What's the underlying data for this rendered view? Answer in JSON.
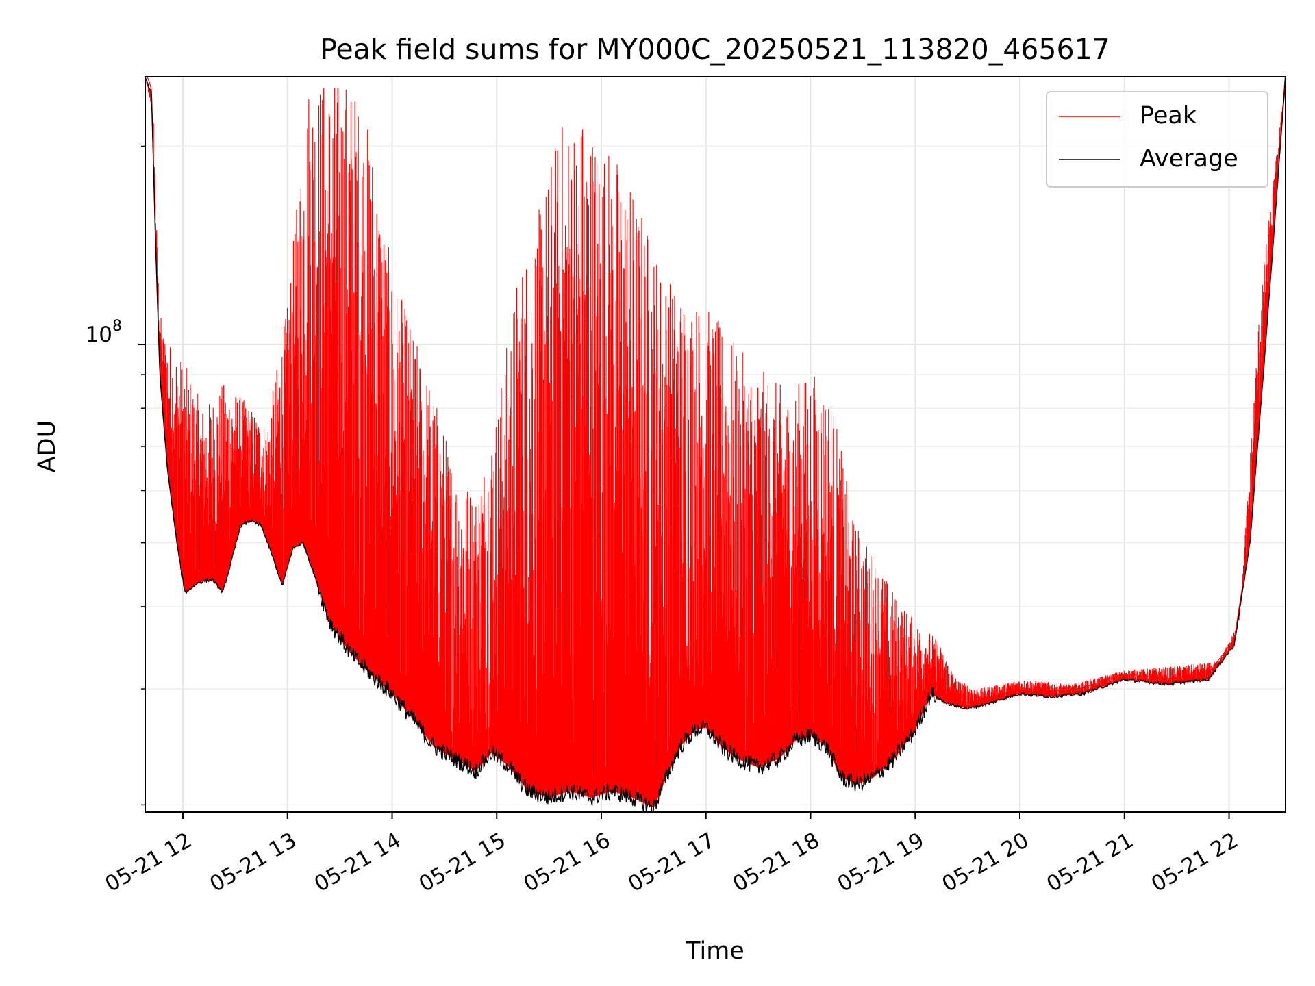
{
  "chart_data": {
    "type": "line",
    "title": "Peak field sums for MY000C_20250521_113820_465617",
    "xlabel": "Time",
    "ylabel": "ADU",
    "yscale": "log",
    "grid": true,
    "legend_position": "top-right",
    "x_tick_labels": [
      "05-21 12",
      "05-21 13",
      "05-21 14",
      "05-21 15",
      "05-21 16",
      "05-21 17",
      "05-21 18",
      "05-21 19",
      "05-21 20",
      "05-21 21",
      "05-21 22"
    ],
    "y_tick_major": {
      "value": 100000000,
      "base": "10",
      "exponent": "8"
    },
    "y_minor_ticks": [
      20000000,
      30000000,
      40000000,
      50000000,
      60000000,
      70000000,
      80000000,
      90000000,
      200000000
    ],
    "xlim_hours": [
      11.64,
      22.54
    ],
    "ylim": [
      19500000,
      255000000
    ],
    "series": [
      {
        "name": "Peak",
        "color": "#ff0000",
        "points": [
          [
            11.64,
            255000000.0
          ],
          [
            11.72,
            220000000.0
          ],
          [
            11.76,
            130000000.0
          ],
          [
            11.8,
            105000000.0
          ],
          [
            11.85,
            102000000.0
          ],
          [
            12.0,
            95000000.0
          ],
          [
            12.2,
            80000000.0
          ],
          [
            12.4,
            88000000.0
          ],
          [
            12.6,
            82000000.0
          ],
          [
            12.8,
            75000000.0
          ],
          [
            13.0,
            115000000.0
          ],
          [
            13.2,
            255000000.0
          ],
          [
            13.4,
            255000000.0
          ],
          [
            13.6,
            255000000.0
          ],
          [
            13.8,
            210000000.0
          ],
          [
            14.0,
            130000000.0
          ],
          [
            14.2,
            105000000.0
          ],
          [
            14.4,
            85000000.0
          ],
          [
            14.6,
            65000000.0
          ],
          [
            14.8,
            60000000.0
          ],
          [
            15.0,
            80000000.0
          ],
          [
            15.2,
            130000000.0
          ],
          [
            15.4,
            160000000.0
          ],
          [
            15.6,
            220000000.0
          ],
          [
            15.8,
            230000000.0
          ],
          [
            16.0,
            210000000.0
          ],
          [
            16.2,
            190000000.0
          ],
          [
            16.4,
            160000000.0
          ],
          [
            16.6,
            130000000.0
          ],
          [
            16.8,
            120000000.0
          ],
          [
            17.0,
            115000000.0
          ],
          [
            17.2,
            105000000.0
          ],
          [
            17.4,
            95000000.0
          ],
          [
            17.6,
            90000000.0
          ],
          [
            17.8,
            85000000.0
          ],
          [
            18.0,
            92000000.0
          ],
          [
            18.2,
            85000000.0
          ],
          [
            18.4,
            55000000.0
          ],
          [
            18.6,
            48000000.0
          ],
          [
            18.8,
            42000000.0
          ],
          [
            19.0,
            38000000.0
          ],
          [
            19.2,
            36000000.0
          ],
          [
            19.4,
            31000000.0
          ],
          [
            19.6,
            30000000.0
          ],
          [
            20.0,
            31000000.0
          ],
          [
            20.5,
            30500000.0
          ],
          [
            21.0,
            32000000.0
          ],
          [
            21.5,
            32500000.0
          ],
          [
            21.9,
            33000000.0
          ],
          [
            22.1,
            38000000.0
          ],
          [
            22.3,
            120000000.0
          ],
          [
            22.54,
            255000000.0
          ]
        ]
      },
      {
        "name": "Average",
        "color": "#000000",
        "points": [
          [
            11.64,
            255000000.0
          ],
          [
            11.7,
            240000000.0
          ],
          [
            11.74,
            140000000.0
          ],
          [
            11.78,
            90000000.0
          ],
          [
            11.85,
            65000000.0
          ],
          [
            11.95,
            49000000.0
          ],
          [
            12.02,
            42000000.0
          ],
          [
            12.15,
            43500000.0
          ],
          [
            12.28,
            44000000.0
          ],
          [
            12.38,
            42000000.0
          ],
          [
            12.45,
            46000000.0
          ],
          [
            12.55,
            53000000.0
          ],
          [
            12.65,
            54000000.0
          ],
          [
            12.75,
            53000000.0
          ],
          [
            12.85,
            48000000.0
          ],
          [
            12.95,
            43000000.0
          ],
          [
            13.05,
            49000000.0
          ],
          [
            13.15,
            50000000.0
          ],
          [
            13.25,
            45000000.0
          ],
          [
            13.4,
            38000000.0
          ],
          [
            13.6,
            34000000.0
          ],
          [
            13.8,
            31500000.0
          ],
          [
            14.0,
            29500000.0
          ],
          [
            14.2,
            27000000.0
          ],
          [
            14.4,
            24500000.0
          ],
          [
            14.6,
            23500000.0
          ],
          [
            14.8,
            22500000.0
          ],
          [
            14.95,
            24000000.0
          ],
          [
            15.1,
            23000000.0
          ],
          [
            15.3,
            21000000.0
          ],
          [
            15.5,
            20500000.0
          ],
          [
            15.7,
            21000000.0
          ],
          [
            15.9,
            20500000.0
          ],
          [
            16.1,
            21000000.0
          ],
          [
            16.3,
            20500000.0
          ],
          [
            16.5,
            19800000.0
          ],
          [
            16.62,
            22000000.0
          ],
          [
            16.75,
            24500000.0
          ],
          [
            16.9,
            26000000.0
          ],
          [
            17.0,
            26200000.0
          ],
          [
            17.15,
            24500000.0
          ],
          [
            17.3,
            23500000.0
          ],
          [
            17.5,
            22800000.0
          ],
          [
            17.7,
            23500000.0
          ],
          [
            17.85,
            25000000.0
          ],
          [
            18.0,
            25500000.0
          ],
          [
            18.15,
            24500000.0
          ],
          [
            18.3,
            22000000.0
          ],
          [
            18.45,
            21500000.0
          ],
          [
            18.6,
            22000000.0
          ],
          [
            18.8,
            23500000.0
          ],
          [
            19.0,
            26000000.0
          ],
          [
            19.15,
            29500000.0
          ],
          [
            19.3,
            28500000.0
          ],
          [
            19.5,
            28000000.0
          ],
          [
            19.7,
            28500000.0
          ],
          [
            20.0,
            29500000.0
          ],
          [
            20.3,
            29200000.0
          ],
          [
            20.6,
            29500000.0
          ],
          [
            21.0,
            31000000.0
          ],
          [
            21.4,
            30500000.0
          ],
          [
            21.8,
            31000000.0
          ],
          [
            22.05,
            35000000.0
          ],
          [
            22.2,
            50000000.0
          ],
          [
            22.35,
            100000000.0
          ],
          [
            22.54,
            255000000.0
          ]
        ]
      }
    ]
  }
}
